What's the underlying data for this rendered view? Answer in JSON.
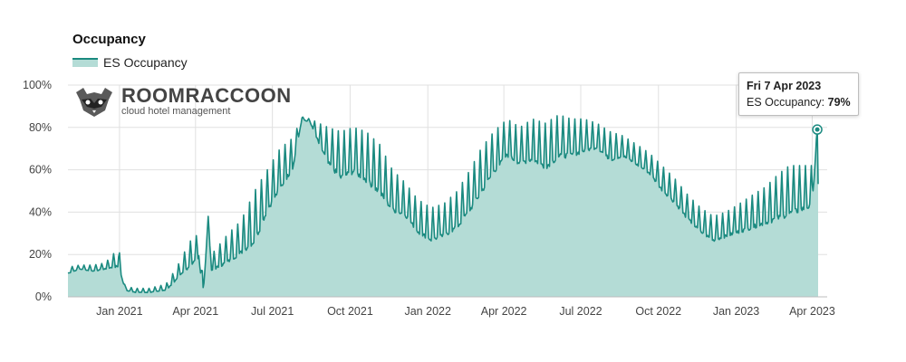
{
  "header": {
    "title": "Occupancy"
  },
  "logo": {
    "name": "ROOMRACCOON",
    "tagline": "cloud hotel management"
  },
  "tooltip": {
    "date": "Fri 7 Apr 2023",
    "label": "ES Occupancy:",
    "value": "79%"
  },
  "colors": {
    "line": "#1a8a80",
    "area": "#b4dcd6",
    "grid": "#e0e0e0",
    "axis": "#bdbdbd"
  },
  "chart_data": {
    "type": "area",
    "title": "Occupancy",
    "xlabel": "",
    "ylabel": "",
    "ylim": [
      0,
      100
    ],
    "y_ticks": [
      "0%",
      "20%",
      "40%",
      "60%",
      "80%",
      "100%"
    ],
    "x_ticks": [
      "Jan 2021",
      "Apr 2021",
      "Jul 2021",
      "Oct 2021",
      "Jan 2022",
      "Apr 2022",
      "Jul 2022",
      "Oct 2022",
      "Jan 2023",
      "Apr 2023"
    ],
    "x_start": "2020-11-01",
    "x_end": "2023-04-08",
    "grid": true,
    "legend": "top-left",
    "series": [
      {
        "name": "ES Occupancy",
        "x": [
          "2020-11-01",
          "2020-11-15",
          "2020-12-01",
          "2020-12-15",
          "2020-12-31",
          "2021-01-08",
          "2021-01-20",
          "2021-02-05",
          "2021-02-25",
          "2021-03-10",
          "2021-03-25",
          "2021-04-05",
          "2021-04-10",
          "2021-04-16",
          "2021-04-20",
          "2021-05-10",
          "2021-05-25",
          "2021-06-10",
          "2021-06-25",
          "2021-07-10",
          "2021-07-25",
          "2021-08-05",
          "2021-08-15",
          "2021-08-25",
          "2021-09-05",
          "2021-09-20",
          "2021-10-05",
          "2021-10-20",
          "2021-11-05",
          "2021-11-20",
          "2021-12-05",
          "2021-12-20",
          "2022-01-05",
          "2022-01-20",
          "2022-02-05",
          "2022-02-20",
          "2022-03-05",
          "2022-03-20",
          "2022-04-05",
          "2022-04-20",
          "2022-05-05",
          "2022-05-20",
          "2022-06-05",
          "2022-06-20",
          "2022-07-05",
          "2022-07-20",
          "2022-08-05",
          "2022-08-20",
          "2022-09-05",
          "2022-09-20",
          "2022-10-05",
          "2022-10-20",
          "2022-11-05",
          "2022-11-20",
          "2022-12-05",
          "2022-12-20",
          "2023-01-05",
          "2023-01-20",
          "2023-02-05",
          "2023-02-20",
          "2023-03-05",
          "2023-03-20",
          "2023-04-01",
          "2023-04-07",
          "2023-04-08"
        ],
        "y": [
          11,
          13,
          12,
          13,
          14,
          3,
          2,
          2,
          3,
          8,
          14,
          18,
          0,
          36,
          12,
          16,
          20,
          25,
          40,
          50,
          60,
          84,
          82,
          72,
          62,
          55,
          58,
          54,
          48,
          40,
          38,
          30,
          26,
          28,
          32,
          40,
          48,
          58,
          66,
          62,
          64,
          60,
          65,
          66,
          68,
          70,
          64,
          66,
          62,
          58,
          50,
          44,
          36,
          30,
          26,
          28,
          30,
          32,
          34,
          36,
          38,
          40,
          42,
          79,
          45
        ],
        "y_peak": [
          14,
          15,
          15,
          16,
          23,
          5,
          4,
          4,
          6,
          14,
          26,
          30,
          8,
          38,
          20,
          30,
          36,
          50,
          60,
          70,
          75,
          85,
          84,
          82,
          80,
          78,
          80,
          78,
          72,
          60,
          54,
          46,
          42,
          44,
          50,
          60,
          70,
          78,
          84,
          80,
          84,
          82,
          86,
          84,
          84,
          82,
          78,
          76,
          72,
          68,
          62,
          56,
          48,
          42,
          38,
          40,
          44,
          48,
          52,
          58,
          62,
          62,
          62,
          79,
          60
        ]
      }
    ],
    "highlight_point": {
      "x": "2023-04-07",
      "y": 79
    }
  }
}
